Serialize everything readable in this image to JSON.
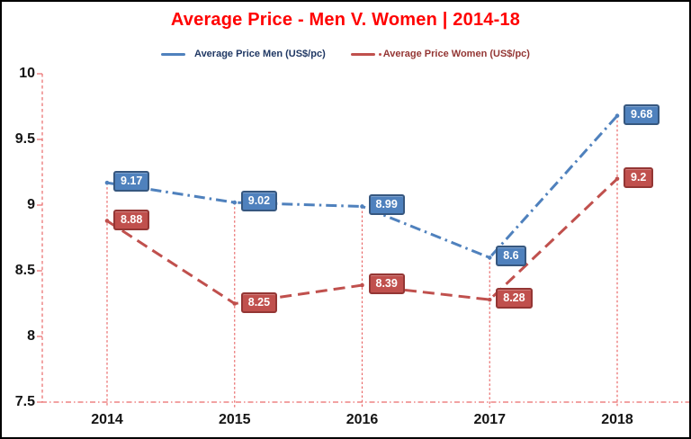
{
  "chart_data": {
    "type": "line",
    "title": "Average Price - Men V. Women | 2014-18",
    "title_color": "#FF0000",
    "categories": [
      "2014",
      "2015",
      "2016",
      "2017",
      "2018"
    ],
    "series": [
      {
        "name": "Average Price Men (US$/pc)",
        "values": [
          9.17,
          9.02,
          8.99,
          8.6,
          9.68
        ],
        "color": "#4F81BD",
        "label_border_color": "#36577F",
        "legend_text_color": "#203864",
        "line_style": "dash-dot"
      },
      {
        "name": "Average Price Women (US$/pc)",
        "values": [
          8.88,
          8.25,
          8.39,
          8.28,
          9.2
        ],
        "color": "#C0504D",
        "label_border_color": "#943634",
        "legend_text_color": "#943634",
        "line_style": "dash"
      }
    ],
    "y_ticks": [
      10,
      9.5,
      9,
      8.5,
      8,
      7.5
    ],
    "ylim": [
      7.5,
      10
    ],
    "xlabel": "",
    "ylabel": "",
    "axis_color": "#E96A6A",
    "grid": "none",
    "drop_lines": true,
    "data_labels": true,
    "data_label_text_color": "#FFFFFF",
    "legend_position": "top"
  }
}
